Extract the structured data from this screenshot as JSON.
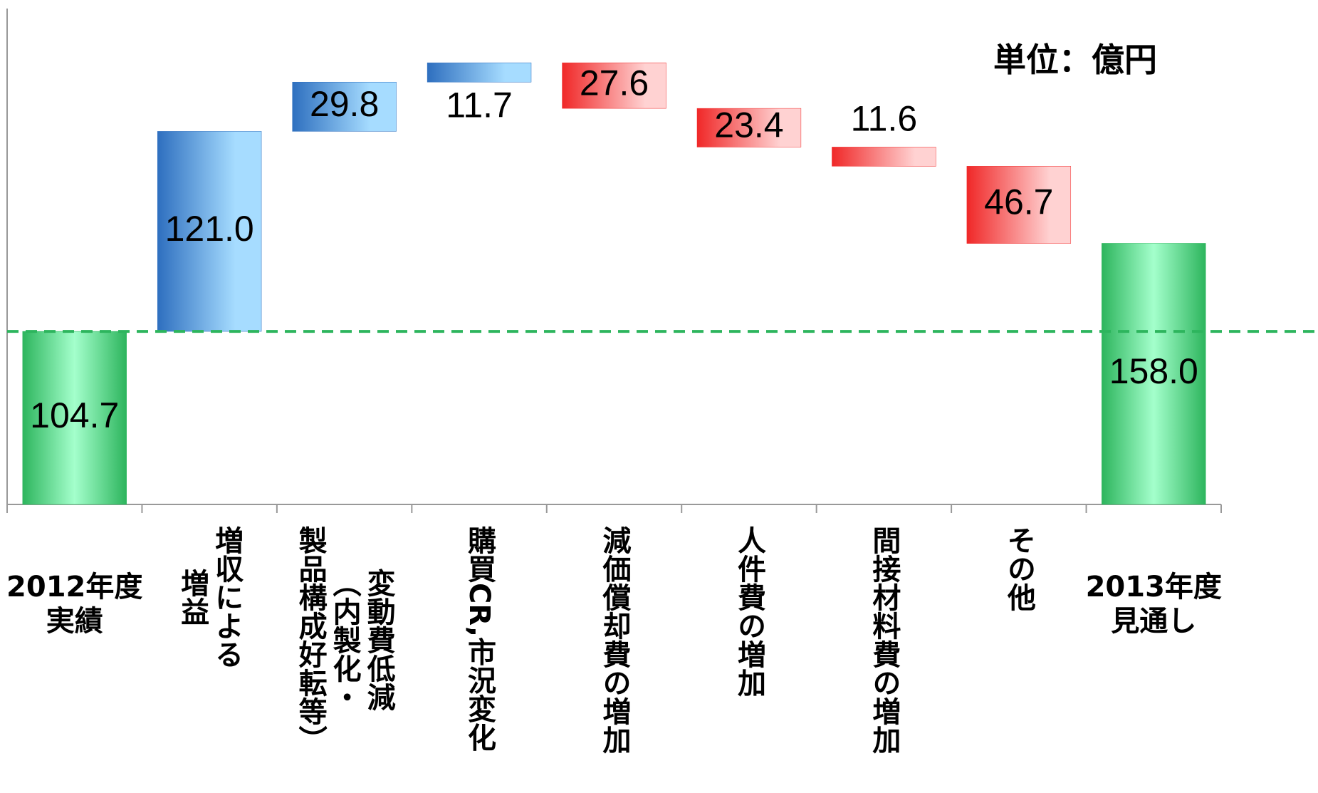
{
  "chart_data": {
    "type": "waterfall",
    "annotation": "単位：億円",
    "categories": [
      "2012年度\n実績",
      "増収による\n増益",
      "変動費低減\n（内製化・\n製品構成好転等）",
      "購買CR,市況変化",
      "減価償却費の増加",
      "人件費の増加",
      "間接材料費の増加",
      "その他",
      "2013年度\n見通し"
    ],
    "measures": [
      "total",
      "relative",
      "relative",
      "relative",
      "relative",
      "relative",
      "relative",
      "relative",
      "total"
    ],
    "values": [
      104.7,
      121.0,
      29.8,
      11.7,
      -27.6,
      -23.4,
      -11.6,
      -46.7,
      158.0
    ],
    "value_labels": [
      "104.7",
      "121.0",
      "29.8",
      "11.7",
      "27.6",
      "23.4",
      "11.6",
      "46.7",
      "158.0"
    ],
    "colors": {
      "total": "#2db55d",
      "increase": "#2e6fbf",
      "decrease": "#f02828"
    },
    "ylim": [
      0,
      300
    ]
  }
}
